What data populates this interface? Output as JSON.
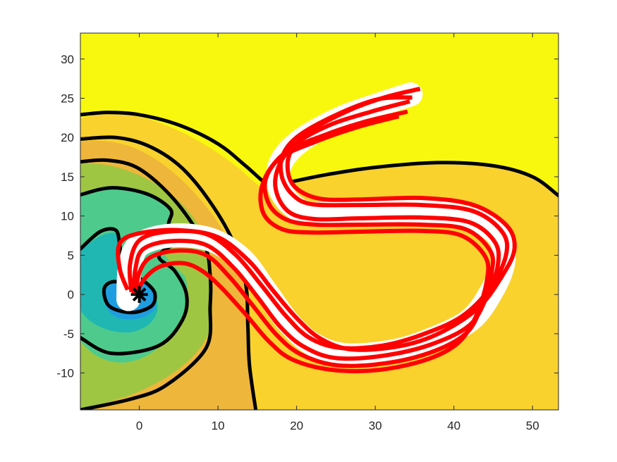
{
  "chart_data": {
    "type": "contour",
    "title": "",
    "xlabel": "",
    "ylabel": "",
    "xlim": [
      -7.5,
      53.3
    ],
    "ylim": [
      -14.7,
      33.3
    ],
    "xticks": [
      0,
      10,
      20,
      30,
      40,
      50
    ],
    "yticks": [
      30,
      25,
      20,
      15,
      10,
      5,
      0,
      -5,
      -10
    ],
    "xtick_labels": [
      "0",
      "10",
      "20",
      "30",
      "40",
      "50"
    ],
    "ytick_labels": [
      "30",
      "25",
      "20",
      "15",
      "10",
      "5",
      "0",
      "-5",
      "-10"
    ],
    "grid": false,
    "legend": "none",
    "colors": {
      "background": "#ffffff",
      "axes_box": "#262626",
      "level_outer": "#f8f80f",
      "level_2": "#f9d22e",
      "level_3": "#eeb63a",
      "level_4": "#9fc642",
      "level_5": "#4ecb8c",
      "level_6": "#20b7b3",
      "level_7": "#1e9ee0",
      "contour_line": "#000000",
      "track_highlight": "#ffffff",
      "track_lines": "#ff0000",
      "center_marker": "#000000"
    },
    "center_marker": {
      "x": 0,
      "y": 0,
      "symbol": "asterisk"
    },
    "contour_lines": [
      {
        "level": 1,
        "points": [
          [
            -7.5,
            22.9
          ],
          [
            -4,
            23.2
          ],
          [
            0,
            22.9
          ],
          [
            5,
            21.6
          ],
          [
            10,
            19.2
          ],
          [
            13.5,
            16.4
          ],
          [
            16.7,
            13.8
          ],
          [
            19,
            14.3
          ],
          [
            24,
            15.3
          ],
          [
            30,
            16.2
          ],
          [
            38,
            16.8
          ],
          [
            45,
            16.4
          ],
          [
            50,
            15.0
          ],
          [
            53.3,
            12.6
          ]
        ]
      },
      {
        "level": 2,
        "points": [
          [
            -7.5,
            19.8
          ],
          [
            -3,
            20.0
          ],
          [
            1,
            19.0
          ],
          [
            5,
            16.5
          ],
          [
            8.5,
            12.5
          ],
          [
            11.8,
            7.0
          ],
          [
            13.5,
            1.5
          ],
          [
            13.8,
            -4
          ],
          [
            14.0,
            -9
          ],
          [
            14.8,
            -14.7
          ]
        ]
      },
      {
        "level": 3,
        "points": [
          [
            -7.5,
            16.9
          ],
          [
            -4,
            17.1
          ],
          [
            0,
            16.0
          ],
          [
            4.5,
            12.0
          ],
          [
            8.2,
            6.5
          ],
          [
            9.0,
            2.5
          ],
          [
            9.0,
            -1.5
          ],
          [
            8.5,
            -6.8
          ],
          [
            3.5,
            -11.5
          ],
          [
            -1,
            -13.3
          ],
          [
            -7.5,
            -14.7
          ]
        ]
      },
      {
        "level": 4,
        "points": [
          [
            -7.5,
            12.7
          ],
          [
            -3.5,
            13.6
          ],
          [
            1,
            12.8
          ],
          [
            4.0,
            10.8
          ],
          [
            3.8,
            8.8
          ],
          [
            6.0,
            7.5
          ],
          [
            2.5,
            5.0
          ],
          [
            4.5,
            3.0
          ],
          [
            6.0,
            0
          ],
          [
            5.5,
            -3.2
          ],
          [
            2.5,
            -6.5
          ],
          [
            -3.5,
            -7.5
          ],
          [
            -7.5,
            -5.5
          ]
        ]
      },
      {
        "level": 5,
        "points": [
          [
            -7.5,
            5.8
          ],
          [
            -5,
            8.0
          ],
          [
            -3,
            8.2
          ],
          [
            -2.5,
            6.3
          ],
          [
            -2.2,
            4.5
          ],
          [
            -0.5,
            2.5
          ],
          [
            1.2,
            1.2
          ],
          [
            2.0,
            0
          ],
          [
            1.5,
            -1.5
          ],
          [
            -1,
            -2.3
          ],
          [
            -3.8,
            -1.5
          ],
          [
            -4.5,
            0.6
          ],
          [
            -3.5,
            1.6
          ],
          [
            -1.5,
            1.3
          ],
          [
            -0.2,
            0.3
          ]
        ]
      }
    ],
    "track_bands": [
      {
        "points": [
          [
            -1.4,
            -0.6
          ],
          [
            -1.2,
            3.5
          ],
          [
            0,
            6.3
          ],
          [
            4,
            7.5
          ],
          [
            9,
            7.0
          ],
          [
            13,
            4.5
          ],
          [
            16,
            0.5
          ],
          [
            19,
            -3.6
          ],
          [
            22,
            -6.3
          ],
          [
            26,
            -7.7
          ],
          [
            32,
            -7.3
          ],
          [
            37,
            -5.8
          ],
          [
            42,
            -3.3
          ],
          [
            44.8,
            0.4
          ],
          [
            46.3,
            4.2
          ],
          [
            45.8,
            7.3
          ],
          [
            42.5,
            9.5
          ],
          [
            36,
            10.6
          ],
          [
            28,
            10.4
          ],
          [
            22,
            10.3
          ],
          [
            19.4,
            11.4
          ],
          [
            17.8,
            13.8
          ],
          [
            18.0,
            16.8
          ],
          [
            20.5,
            19.6
          ],
          [
            25.5,
            22.4
          ],
          [
            30.5,
            24.2
          ],
          [
            34.5,
            25.5
          ]
        ]
      }
    ],
    "track_lines": [
      {
        "points": [
          [
            -1.5,
            0.6
          ],
          [
            -2.5,
            3.3
          ],
          [
            -2.5,
            6.5
          ],
          [
            0,
            7.8
          ],
          [
            5,
            8.2
          ],
          [
            10,
            7.3
          ],
          [
            14,
            4.2
          ],
          [
            17,
            0.5
          ],
          [
            20,
            -3.0
          ],
          [
            23,
            -5.6
          ],
          [
            27,
            -7.0
          ],
          [
            33,
            -6.6
          ],
          [
            38,
            -5.0
          ],
          [
            43,
            -1.8
          ],
          [
            46.1,
            2.3
          ],
          [
            47.7,
            5.8
          ],
          [
            46.7,
            8.8
          ],
          [
            42.5,
            11.4
          ],
          [
            36,
            12.3
          ],
          [
            28,
            12.1
          ],
          [
            23,
            12.2
          ],
          [
            20,
            13.5
          ],
          [
            18.9,
            15.6
          ],
          [
            19.3,
            18.3
          ],
          [
            22,
            21.0
          ],
          [
            27,
            23.6
          ],
          [
            31.5,
            25.2
          ],
          [
            35.7,
            26.2
          ]
        ]
      },
      {
        "points": [
          [
            -1.0,
            0.3
          ],
          [
            -1.2,
            3.8
          ],
          [
            0,
            6.9
          ],
          [
            3.5,
            8.0
          ],
          [
            8.5,
            7.7
          ],
          [
            12.3,
            5.0
          ],
          [
            15.5,
            1.2
          ],
          [
            18.7,
            -2.8
          ],
          [
            21.6,
            -5.5
          ],
          [
            25.5,
            -6.8
          ],
          [
            31,
            -6.5
          ],
          [
            36,
            -5.1
          ],
          [
            41,
            -2.8
          ],
          [
            44.6,
            0.8
          ],
          [
            46.6,
            4.9
          ],
          [
            46.2,
            7.9
          ],
          [
            42.5,
            10.6
          ],
          [
            36,
            11.4
          ],
          [
            28,
            11.4
          ],
          [
            22,
            11.5
          ],
          [
            19.5,
            12.7
          ],
          [
            18.1,
            15.1
          ],
          [
            18.3,
            17.9
          ],
          [
            20.5,
            20.4
          ],
          [
            25.5,
            23.1
          ],
          [
            30.5,
            24.9
          ],
          [
            34.7,
            25.1
          ]
        ]
      },
      {
        "points": [
          [
            -0.7,
            0.1
          ],
          [
            -0.5,
            3.3
          ],
          [
            0.5,
            5.8
          ],
          [
            4,
            6.8
          ],
          [
            8.5,
            6.3
          ],
          [
            12,
            3.4
          ],
          [
            15,
            -0.3
          ],
          [
            18,
            -4.2
          ],
          [
            21,
            -6.7
          ],
          [
            25,
            -8.1
          ],
          [
            31,
            -7.8
          ],
          [
            37,
            -6.4
          ],
          [
            42,
            -3.9
          ],
          [
            44.3,
            0
          ],
          [
            45.6,
            3.8
          ],
          [
            45.2,
            6.7
          ],
          [
            42,
            9.2
          ],
          [
            36,
            9.8
          ],
          [
            28,
            9.7
          ],
          [
            22.5,
            9.6
          ],
          [
            19.2,
            10.4
          ],
          [
            17.5,
            12.8
          ],
          [
            17.5,
            15.7
          ],
          [
            19.5,
            18.9
          ],
          [
            24,
            21.5
          ],
          [
            29.5,
            23.3
          ],
          [
            34.4,
            24.6
          ]
        ]
      },
      {
        "points": [
          [
            -0.5,
            -0.1
          ],
          [
            0,
            2.8
          ],
          [
            1.5,
            4.8
          ],
          [
            5,
            5.6
          ],
          [
            8.5,
            5.0
          ],
          [
            11.5,
            2.2
          ],
          [
            14.5,
            -1.5
          ],
          [
            17.5,
            -5.2
          ],
          [
            20.5,
            -7.6
          ],
          [
            25,
            -9.0
          ],
          [
            31,
            -8.8
          ],
          [
            37,
            -7.4
          ],
          [
            41.5,
            -5.0
          ],
          [
            43.5,
            -1.5
          ],
          [
            44.8,
            2.8
          ],
          [
            44.6,
            5.6
          ],
          [
            41.5,
            8.3
          ],
          [
            36,
            8.9
          ],
          [
            28,
            8.9
          ],
          [
            22.5,
            8.9
          ],
          [
            18.8,
            9.5
          ],
          [
            16.5,
            11.5
          ],
          [
            16.1,
            14.8
          ],
          [
            18.6,
            18.1
          ],
          [
            23.5,
            20.3
          ],
          [
            29,
            22.1
          ],
          [
            34.1,
            23.3
          ]
        ]
      },
      {
        "points": [
          [
            -0.3,
            0
          ],
          [
            0.5,
            1.8
          ],
          [
            2.5,
            3.5
          ],
          [
            5.5,
            4.0
          ],
          [
            8,
            3.0
          ],
          [
            10.5,
            0.8
          ],
          [
            13.5,
            -2.5
          ],
          [
            16.5,
            -6.0
          ],
          [
            19.5,
            -8.3
          ],
          [
            24.5,
            -9.6
          ],
          [
            30.5,
            -9.6
          ],
          [
            36.5,
            -8.3
          ],
          [
            40.5,
            -6.2
          ],
          [
            42.8,
            -2.8
          ],
          [
            44.2,
            1.8
          ],
          [
            44.0,
            4.8
          ],
          [
            41,
            7.5
          ],
          [
            36,
            8.1
          ],
          [
            28,
            8.0
          ],
          [
            22,
            7.9
          ],
          [
            18.2,
            8.3
          ],
          [
            15.8,
            10.3
          ],
          [
            15.6,
            13.8
          ],
          [
            17.8,
            17.3
          ],
          [
            22.5,
            19.5
          ],
          [
            28,
            21.4
          ],
          [
            33,
            22.7
          ]
        ]
      }
    ]
  }
}
